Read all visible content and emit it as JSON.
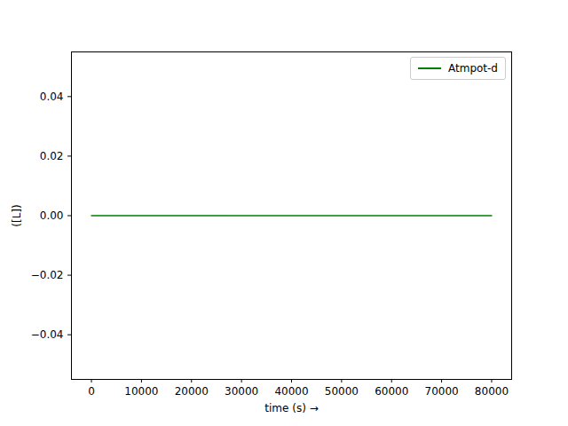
{
  "chart_data": {
    "type": "line",
    "y_label": "([L])",
    "x_label": "time (s)",
    "x": [
      0,
      10000,
      20000,
      30000,
      40000,
      50000,
      60000,
      70000,
      80000
    ],
    "series": [
      {
        "name": "Atmpot-d",
        "color": "green",
        "values": [
          0,
          0,
          0,
          0,
          0,
          0,
          0,
          0,
          0
        ]
      }
    ],
    "xlim": [
      -4000,
      84000
    ],
    "xticks": [
      0,
      10000,
      20000,
      30000,
      40000,
      50000,
      60000,
      70000,
      80000
    ],
    "ylim": [
      -0.055,
      0.055
    ],
    "yticks": [
      {
        "value": -0.04,
        "label": "−0.04"
      },
      {
        "value": -0.02,
        "label": "−0.02"
      },
      {
        "value": 0,
        "label": "0.00"
      },
      {
        "value": 0.02,
        "label": "0.02"
      },
      {
        "value": 0.04,
        "label": "0.04"
      }
    ],
    "legend": "upper right",
    "grid": false
  }
}
